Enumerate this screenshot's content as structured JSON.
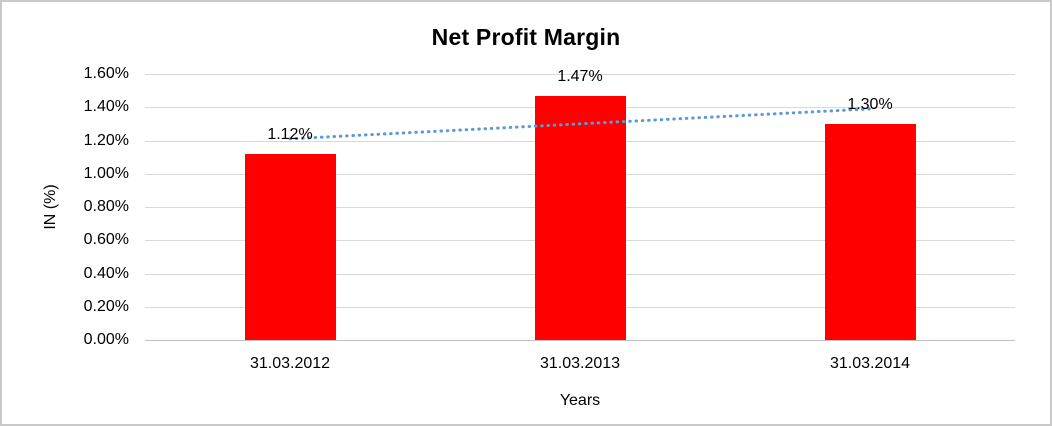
{
  "chart_data": {
    "type": "bar",
    "title": "Net Profit Margin",
    "xlabel": "Years",
    "ylabel": "IN (%)",
    "categories": [
      "31.03.2012",
      "31.03.2013",
      "31.03.2014"
    ],
    "values": [
      1.12,
      1.47,
      1.3
    ],
    "value_labels": [
      "1.12%",
      "1.47%",
      "1.30%"
    ],
    "ylim": [
      0,
      1.6
    ],
    "ytick_step": 0.2,
    "ytick_labels": [
      "0.00%",
      "0.20%",
      "0.40%",
      "0.60%",
      "0.80%",
      "1.00%",
      "1.20%",
      "1.40%",
      "1.60%"
    ],
    "grid": true,
    "legend": false,
    "trendline": {
      "type": "linear",
      "style": "dotted",
      "start_value": 1.21,
      "end_value": 1.39
    },
    "colors": {
      "bar": "#ff0000",
      "gridline": "#d9d9d9",
      "axis_line": "#bfbfbf",
      "trendline": "#5b9bd5",
      "text": "#000000",
      "frame_border": "#c9c9c9"
    }
  }
}
